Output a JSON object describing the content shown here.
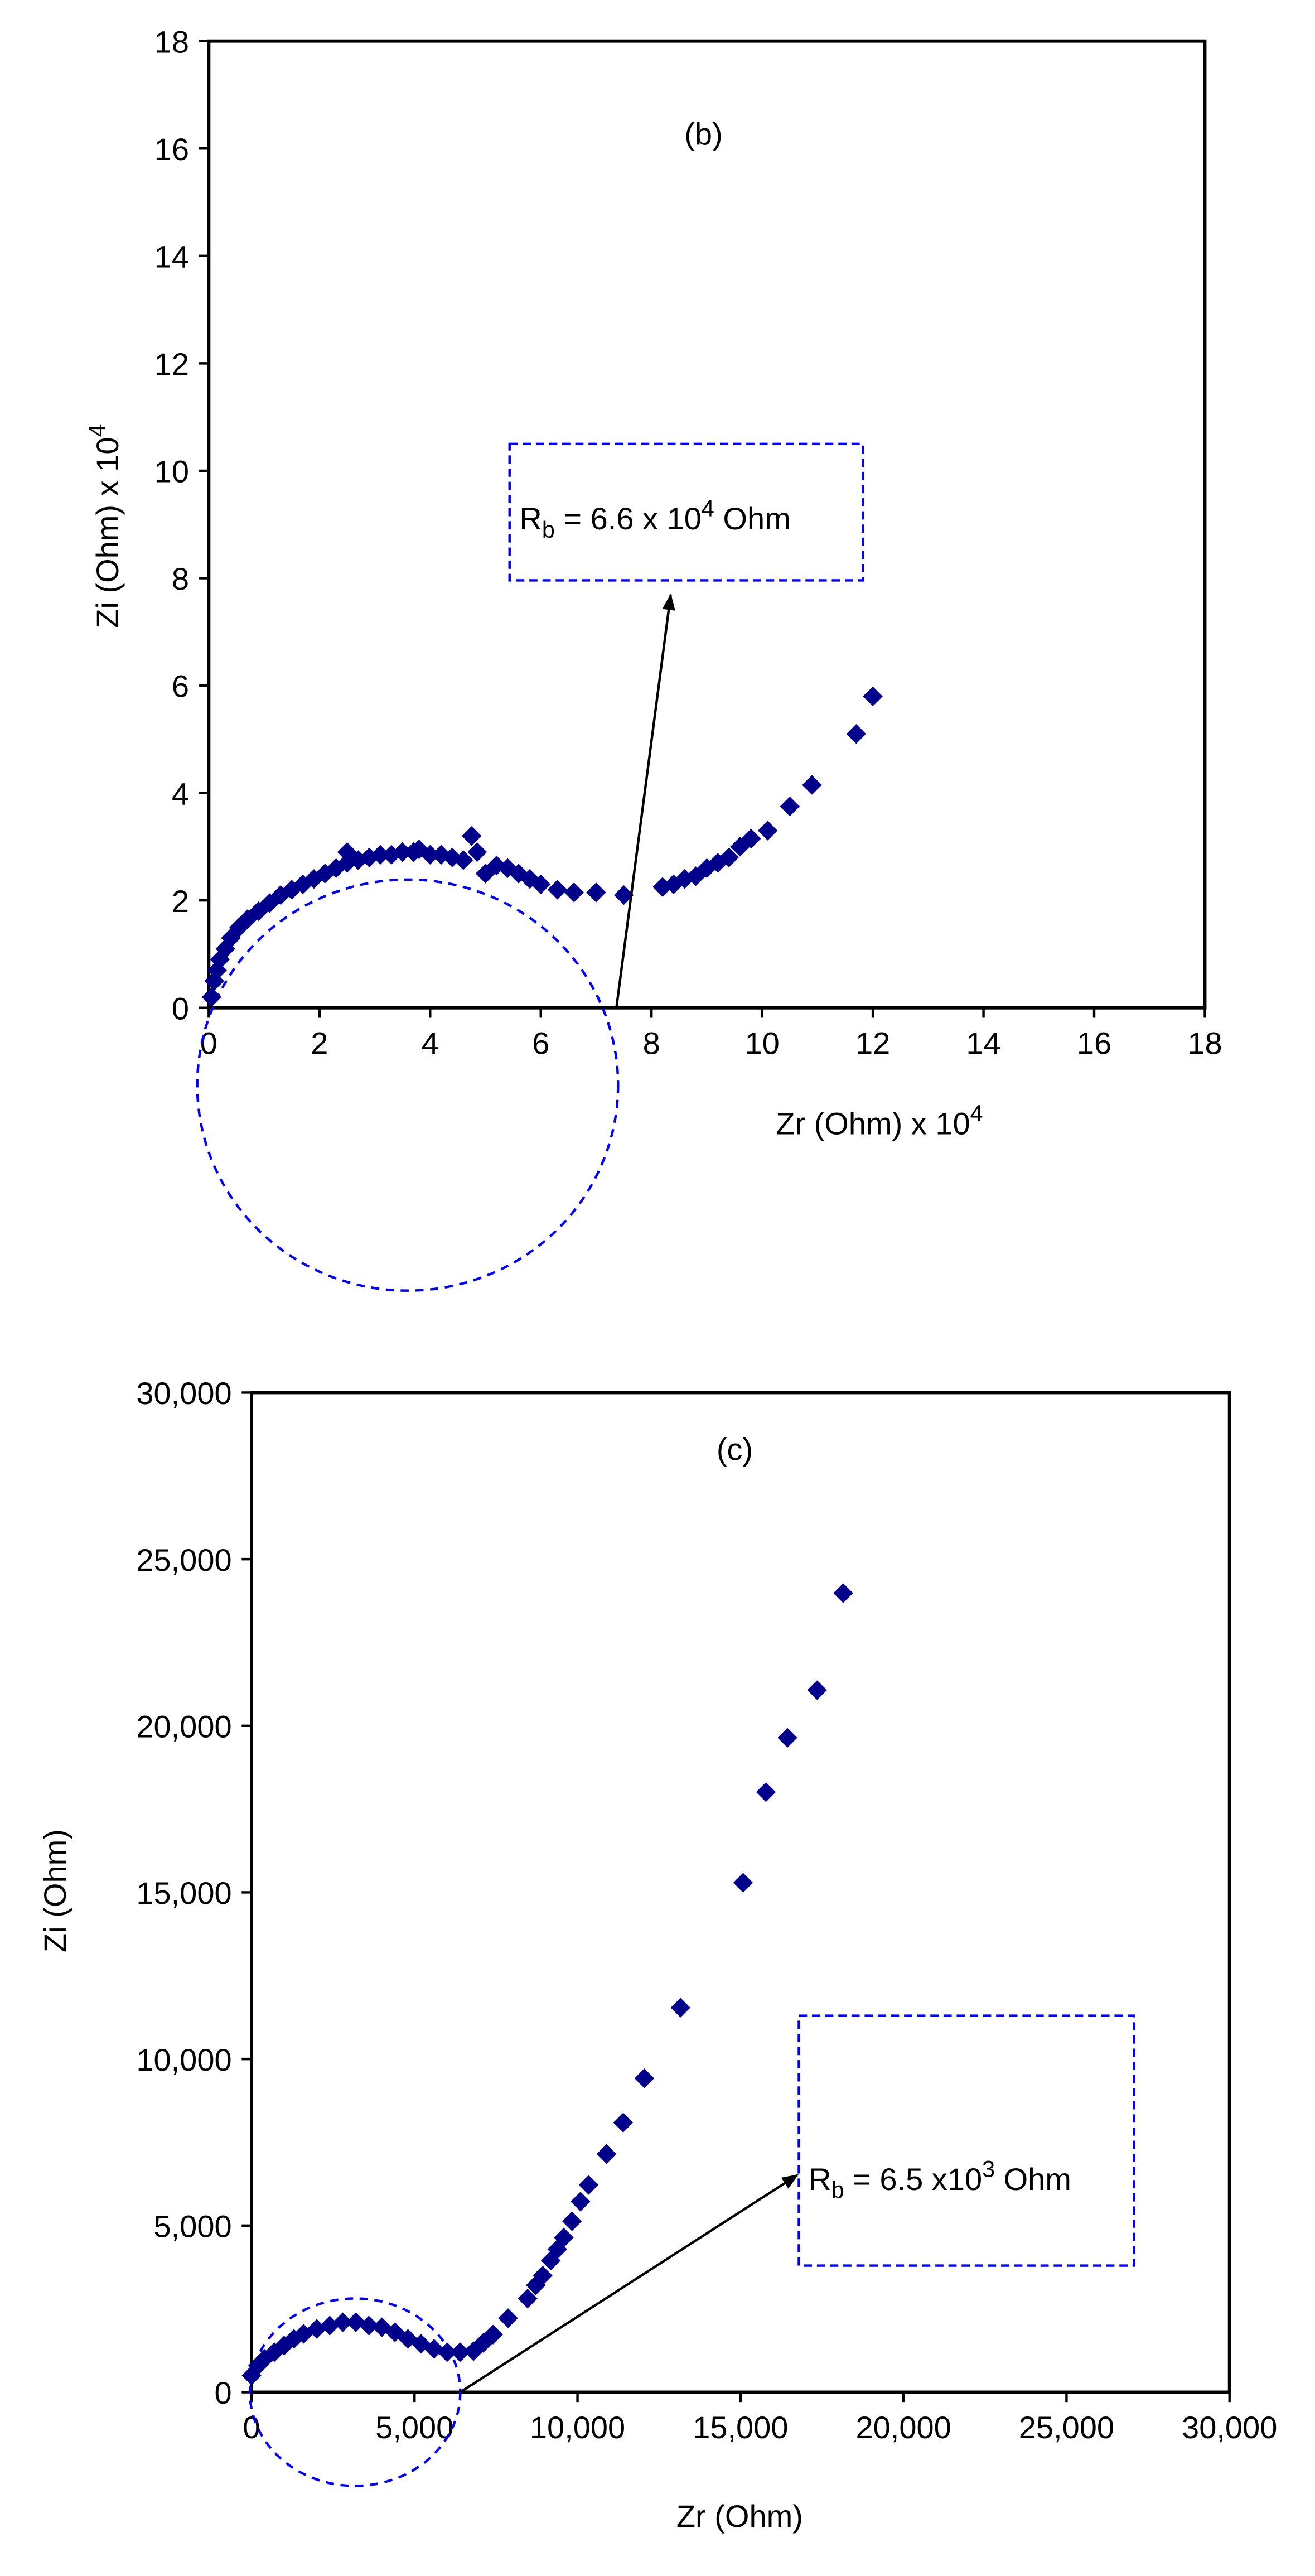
{
  "chart_data": [
    {
      "type": "scatter",
      "title": "(b)",
      "color": "#00008b",
      "xlabel": [
        {
          "text": "Zr (Ohm) x 10"
        },
        {
          "text": "4",
          "script": "sup"
        }
      ],
      "ylabel": [
        {
          "text": "Zi (Ohm) x 10"
        },
        {
          "text": "4",
          "script": "sup"
        }
      ],
      "annotation": [
        {
          "text": "R"
        },
        {
          "text": "b",
          "script": "sub"
        },
        {
          "text": " = 6.6 x 10"
        },
        {
          "text": "4",
          "script": "sup"
        },
        {
          "text": " Ohm"
        }
      ],
      "xlim": [
        0,
        18
      ],
      "ylim": [
        0,
        18
      ],
      "xticks": [
        0,
        2,
        4,
        6,
        8,
        10,
        12,
        14,
        16,
        18
      ],
      "yticks": [
        0,
        2,
        4,
        6,
        8,
        10,
        12,
        14,
        16,
        18
      ],
      "x": [
        0.05,
        0.1,
        0.15,
        0.2,
        0.3,
        0.4,
        0.55,
        0.7,
        0.9,
        1.1,
        1.3,
        1.5,
        1.7,
        1.9,
        2.1,
        2.3,
        2.5,
        2.5,
        2.7,
        2.9,
        3.1,
        3.3,
        3.5,
        3.7,
        3.8,
        4.0,
        4.2,
        4.4,
        4.6,
        4.75,
        4.85,
        5.0,
        5.2,
        5.4,
        5.6,
        5.8,
        6.0,
        6.3,
        6.6,
        7.0,
        7.5,
        8.2,
        8.4,
        8.6,
        8.8,
        9.0,
        9.2,
        9.4,
        9.6,
        9.8,
        10.1,
        10.5,
        10.9,
        11.7,
        12.0
      ],
      "values": [
        0.2,
        0.5,
        0.7,
        0.9,
        1.1,
        1.3,
        1.5,
        1.65,
        1.8,
        1.95,
        2.1,
        2.2,
        2.3,
        2.4,
        2.5,
        2.6,
        2.7,
        2.9,
        2.75,
        2.8,
        2.85,
        2.85,
        2.9,
        2.9,
        2.95,
        2.85,
        2.85,
        2.8,
        2.75,
        3.2,
        2.9,
        2.5,
        2.65,
        2.6,
        2.5,
        2.4,
        2.3,
        2.2,
        2.15,
        2.15,
        2.1,
        2.25,
        2.3,
        2.4,
        2.45,
        2.6,
        2.7,
        2.8,
        3.0,
        3.15,
        3.3,
        3.75,
        4.15,
        5.1,
        5.8
      ]
    },
    {
      "type": "scatter",
      "title": "(c)",
      "color": "#00008b",
      "xlabel": "Zr (Ohm)",
      "ylabel": "Zi (Ohm)",
      "annotation": [
        {
          "text": "R"
        },
        {
          "text": "b",
          "script": "sub"
        },
        {
          "text": " = 6.5 x10"
        },
        {
          "text": "3",
          "script": "sup"
        },
        {
          "text": " Ohm"
        }
      ],
      "xlim": [
        0,
        30000
      ],
      "ylim": [
        0,
        30000
      ],
      "xticks": [
        0,
        {
          "value": 5000,
          "label": "5,000"
        },
        {
          "value": 10000,
          "label": "10,000"
        },
        {
          "value": 15000,
          "label": "15,000"
        },
        {
          "value": 20000,
          "label": "20,000"
        },
        {
          "value": 25000,
          "label": "25,000"
        },
        {
          "value": 30000,
          "label": "30,000"
        }
      ],
      "yticks": [
        0,
        {
          "value": 5000,
          "label": "5,000"
        },
        {
          "value": 10000,
          "label": "10,000"
        },
        {
          "value": 15000,
          "label": "15,000"
        },
        {
          "value": 20000,
          "label": "20,000"
        },
        {
          "value": 25000,
          "label": "25,000"
        },
        {
          "value": 30000,
          "label": "30,000"
        }
      ],
      "x": [
        0,
        200,
        400,
        700,
        1000,
        1300,
        1600,
        2000,
        2400,
        2800,
        3200,
        3600,
        4000,
        4400,
        4800,
        5200,
        5600,
        6000,
        6400,
        6810,
        7110,
        7410,
        7870,
        8470,
        8720,
        8930,
        9180,
        9380,
        9580,
        9830,
        10090,
        10340,
        10890,
        11400,
        12050,
        13160,
        15080,
        15780,
        16440,
        17350,
        18150
      ],
      "values": [
        500,
        800,
        1000,
        1200,
        1400,
        1600,
        1750,
        1900,
        2000,
        2100,
        2100,
        2000,
        1950,
        1800,
        1600,
        1450,
        1300,
        1200,
        1200,
        1230,
        1480,
        1730,
        2220,
        2810,
        3210,
        3500,
        3950,
        4290,
        4640,
        5130,
        5720,
        6220,
        7150,
        8090,
        9420,
        11540,
        15290,
        18010,
        19640,
        21070,
        23980
      ]
    }
  ]
}
